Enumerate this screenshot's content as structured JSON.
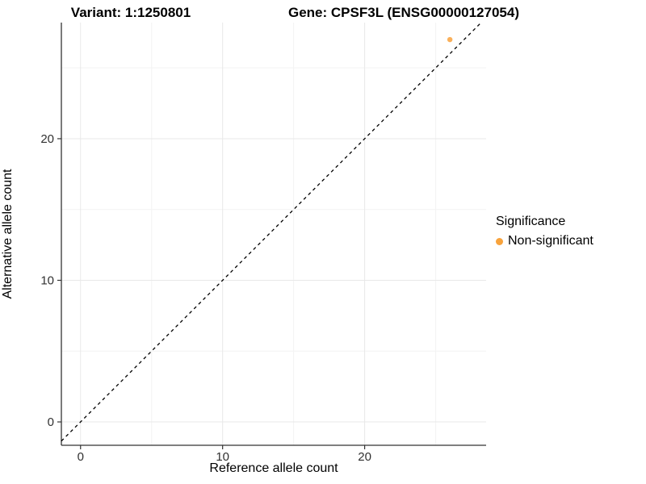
{
  "chart_data": {
    "type": "scatter",
    "titles": {
      "variant": "Variant: 1:1250801",
      "gene": "Gene: CPSF3L (ENSG00000127054)"
    },
    "xlabel": "Reference allele count",
    "ylabel": "Alternative allele count",
    "x_ticks": [
      0,
      10,
      20
    ],
    "y_ticks": [
      0,
      10,
      20
    ],
    "x_minor_ticks": [
      5,
      15,
      25
    ],
    "y_minor_ticks": [
      5,
      15,
      25
    ],
    "xlim": [
      -1.35,
      28.55
    ],
    "ylim": [
      -1.65,
      28.2
    ],
    "grid": "major and minor gridlines, no panel border, left and bottom axis lines",
    "series": [
      {
        "name": "Non-significant",
        "color": "#F8A33C",
        "points": [
          {
            "x": 26,
            "y": 27
          }
        ]
      }
    ],
    "reference_line": {
      "kind": "identity y=x",
      "style": "dashed",
      "color": "#000000"
    },
    "legend": {
      "title": "Significance",
      "position": "right",
      "entries": [
        {
          "label": "Non-significant",
          "color": "#F8A33C"
        }
      ]
    },
    "colors": {
      "background": "#FFFFFF",
      "grid_major": "#E8E8E8",
      "grid_minor": "#F3F3F3",
      "axis_line": "#333333",
      "tick_mark": "#333333",
      "tick_label": "#303030",
      "point_fill": "#F9A748"
    }
  }
}
